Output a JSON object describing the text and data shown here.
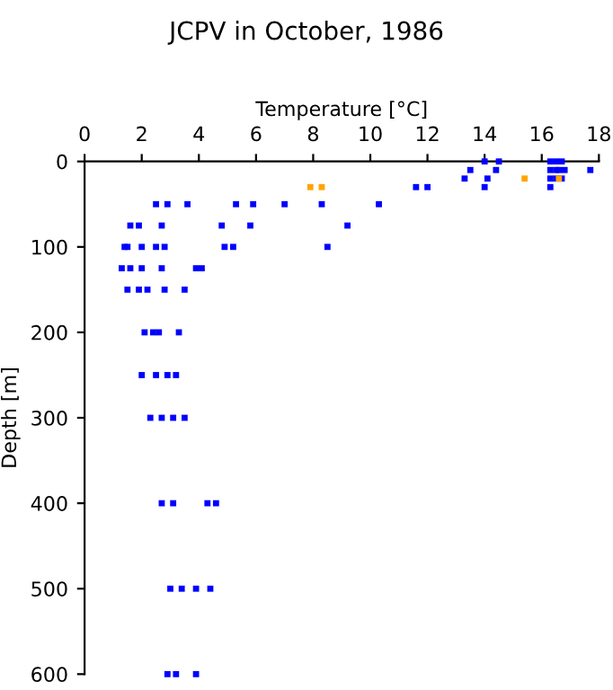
{
  "chart_data": {
    "type": "scatter",
    "title": "JCPV in October, 1986",
    "xlabel": "Temperature [°C]",
    "ylabel": "Depth [m]",
    "xlim": [
      0,
      18
    ],
    "xticks": [
      0,
      2,
      4,
      6,
      8,
      10,
      12,
      14,
      16,
      18
    ],
    "ylim": [
      600,
      0
    ],
    "yticks": [
      0,
      100,
      200,
      300,
      400,
      500,
      600
    ],
    "grid": false,
    "legend": false,
    "marker": "square",
    "series": [
      {
        "color": "#0000ff",
        "x": [
          14.0,
          14.5,
          16.3,
          16.5,
          16.7,
          13.5,
          14.4,
          16.3,
          16.5,
          16.6,
          16.8,
          17.7,
          13.3,
          14.1,
          16.3,
          16.5,
          16.7,
          11.6,
          12.0,
          14.0,
          16.3,
          2.5,
          2.9,
          3.6,
          5.3,
          5.9,
          7.0,
          8.3,
          10.3,
          1.6,
          1.9,
          2.7,
          4.8,
          5.8,
          9.2,
          1.4,
          1.5,
          2.0,
          2.5,
          2.8,
          4.9,
          5.2,
          8.5,
          1.3,
          1.6,
          2.0,
          2.7,
          3.9,
          4.1,
          1.5,
          1.9,
          2.2,
          2.8,
          3.5,
          2.1,
          2.4,
          2.6,
          3.3,
          2.0,
          2.5,
          2.9,
          3.2,
          2.3,
          2.7,
          3.1,
          3.5,
          2.7,
          3.1,
          4.3,
          4.6,
          3.0,
          3.4,
          3.9,
          4.4,
          2.9,
          3.2,
          3.9
        ],
        "values": [
          0,
          0,
          0,
          0,
          0,
          10,
          10,
          10,
          10,
          10,
          10,
          10,
          20,
          20,
          20,
          20,
          20,
          30,
          30,
          30,
          30,
          50,
          50,
          50,
          50,
          50,
          50,
          50,
          50,
          75,
          75,
          75,
          75,
          75,
          75,
          100,
          100,
          100,
          100,
          100,
          100,
          100,
          100,
          125,
          125,
          125,
          125,
          125,
          125,
          150,
          150,
          150,
          150,
          150,
          200,
          200,
          200,
          200,
          250,
          250,
          250,
          250,
          300,
          300,
          300,
          300,
          400,
          400,
          400,
          400,
          500,
          500,
          500,
          500,
          600,
          600,
          600
        ]
      },
      {
        "color": "#ffa500",
        "x": [
          15.4,
          16.6,
          7.9,
          8.3
        ],
        "values": [
          20,
          20,
          30,
          30
        ]
      }
    ]
  }
}
